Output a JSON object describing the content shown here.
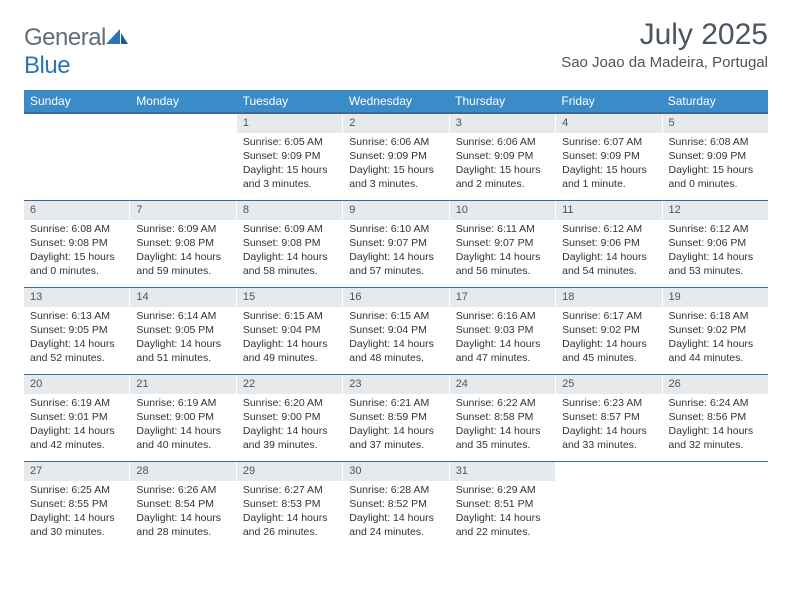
{
  "brand": {
    "word1": "General",
    "word2": "Blue"
  },
  "title": "July 2025",
  "location": "Sao Joao da Madeira, Portugal",
  "colors": {
    "header_bg": "#3b8bc9",
    "rule": "#3b6a9a",
    "daynum_bg": "#e7eaec",
    "text": "#333333",
    "muted": "#4a5560",
    "brand_blue": "#2a74b8"
  },
  "weekdays": [
    "Sunday",
    "Monday",
    "Tuesday",
    "Wednesday",
    "Thursday",
    "Friday",
    "Saturday"
  ],
  "weeks": [
    [
      {
        "n": "",
        "sr": "",
        "ss": "",
        "dl": ""
      },
      {
        "n": "",
        "sr": "",
        "ss": "",
        "dl": ""
      },
      {
        "n": "1",
        "sr": "Sunrise: 6:05 AM",
        "ss": "Sunset: 9:09 PM",
        "dl": "Daylight: 15 hours and 3 minutes."
      },
      {
        "n": "2",
        "sr": "Sunrise: 6:06 AM",
        "ss": "Sunset: 9:09 PM",
        "dl": "Daylight: 15 hours and 3 minutes."
      },
      {
        "n": "3",
        "sr": "Sunrise: 6:06 AM",
        "ss": "Sunset: 9:09 PM",
        "dl": "Daylight: 15 hours and 2 minutes."
      },
      {
        "n": "4",
        "sr": "Sunrise: 6:07 AM",
        "ss": "Sunset: 9:09 PM",
        "dl": "Daylight: 15 hours and 1 minute."
      },
      {
        "n": "5",
        "sr": "Sunrise: 6:08 AM",
        "ss": "Sunset: 9:09 PM",
        "dl": "Daylight: 15 hours and 0 minutes."
      }
    ],
    [
      {
        "n": "6",
        "sr": "Sunrise: 6:08 AM",
        "ss": "Sunset: 9:08 PM",
        "dl": "Daylight: 15 hours and 0 minutes."
      },
      {
        "n": "7",
        "sr": "Sunrise: 6:09 AM",
        "ss": "Sunset: 9:08 PM",
        "dl": "Daylight: 14 hours and 59 minutes."
      },
      {
        "n": "8",
        "sr": "Sunrise: 6:09 AM",
        "ss": "Sunset: 9:08 PM",
        "dl": "Daylight: 14 hours and 58 minutes."
      },
      {
        "n": "9",
        "sr": "Sunrise: 6:10 AM",
        "ss": "Sunset: 9:07 PM",
        "dl": "Daylight: 14 hours and 57 minutes."
      },
      {
        "n": "10",
        "sr": "Sunrise: 6:11 AM",
        "ss": "Sunset: 9:07 PM",
        "dl": "Daylight: 14 hours and 56 minutes."
      },
      {
        "n": "11",
        "sr": "Sunrise: 6:12 AM",
        "ss": "Sunset: 9:06 PM",
        "dl": "Daylight: 14 hours and 54 minutes."
      },
      {
        "n": "12",
        "sr": "Sunrise: 6:12 AM",
        "ss": "Sunset: 9:06 PM",
        "dl": "Daylight: 14 hours and 53 minutes."
      }
    ],
    [
      {
        "n": "13",
        "sr": "Sunrise: 6:13 AM",
        "ss": "Sunset: 9:05 PM",
        "dl": "Daylight: 14 hours and 52 minutes."
      },
      {
        "n": "14",
        "sr": "Sunrise: 6:14 AM",
        "ss": "Sunset: 9:05 PM",
        "dl": "Daylight: 14 hours and 51 minutes."
      },
      {
        "n": "15",
        "sr": "Sunrise: 6:15 AM",
        "ss": "Sunset: 9:04 PM",
        "dl": "Daylight: 14 hours and 49 minutes."
      },
      {
        "n": "16",
        "sr": "Sunrise: 6:15 AM",
        "ss": "Sunset: 9:04 PM",
        "dl": "Daylight: 14 hours and 48 minutes."
      },
      {
        "n": "17",
        "sr": "Sunrise: 6:16 AM",
        "ss": "Sunset: 9:03 PM",
        "dl": "Daylight: 14 hours and 47 minutes."
      },
      {
        "n": "18",
        "sr": "Sunrise: 6:17 AM",
        "ss": "Sunset: 9:02 PM",
        "dl": "Daylight: 14 hours and 45 minutes."
      },
      {
        "n": "19",
        "sr": "Sunrise: 6:18 AM",
        "ss": "Sunset: 9:02 PM",
        "dl": "Daylight: 14 hours and 44 minutes."
      }
    ],
    [
      {
        "n": "20",
        "sr": "Sunrise: 6:19 AM",
        "ss": "Sunset: 9:01 PM",
        "dl": "Daylight: 14 hours and 42 minutes."
      },
      {
        "n": "21",
        "sr": "Sunrise: 6:19 AM",
        "ss": "Sunset: 9:00 PM",
        "dl": "Daylight: 14 hours and 40 minutes."
      },
      {
        "n": "22",
        "sr": "Sunrise: 6:20 AM",
        "ss": "Sunset: 9:00 PM",
        "dl": "Daylight: 14 hours and 39 minutes."
      },
      {
        "n": "23",
        "sr": "Sunrise: 6:21 AM",
        "ss": "Sunset: 8:59 PM",
        "dl": "Daylight: 14 hours and 37 minutes."
      },
      {
        "n": "24",
        "sr": "Sunrise: 6:22 AM",
        "ss": "Sunset: 8:58 PM",
        "dl": "Daylight: 14 hours and 35 minutes."
      },
      {
        "n": "25",
        "sr": "Sunrise: 6:23 AM",
        "ss": "Sunset: 8:57 PM",
        "dl": "Daylight: 14 hours and 33 minutes."
      },
      {
        "n": "26",
        "sr": "Sunrise: 6:24 AM",
        "ss": "Sunset: 8:56 PM",
        "dl": "Daylight: 14 hours and 32 minutes."
      }
    ],
    [
      {
        "n": "27",
        "sr": "Sunrise: 6:25 AM",
        "ss": "Sunset: 8:55 PM",
        "dl": "Daylight: 14 hours and 30 minutes."
      },
      {
        "n": "28",
        "sr": "Sunrise: 6:26 AM",
        "ss": "Sunset: 8:54 PM",
        "dl": "Daylight: 14 hours and 28 minutes."
      },
      {
        "n": "29",
        "sr": "Sunrise: 6:27 AM",
        "ss": "Sunset: 8:53 PM",
        "dl": "Daylight: 14 hours and 26 minutes."
      },
      {
        "n": "30",
        "sr": "Sunrise: 6:28 AM",
        "ss": "Sunset: 8:52 PM",
        "dl": "Daylight: 14 hours and 24 minutes."
      },
      {
        "n": "31",
        "sr": "Sunrise: 6:29 AM",
        "ss": "Sunset: 8:51 PM",
        "dl": "Daylight: 14 hours and 22 minutes."
      },
      {
        "n": "",
        "sr": "",
        "ss": "",
        "dl": ""
      },
      {
        "n": "",
        "sr": "",
        "ss": "",
        "dl": ""
      }
    ]
  ]
}
